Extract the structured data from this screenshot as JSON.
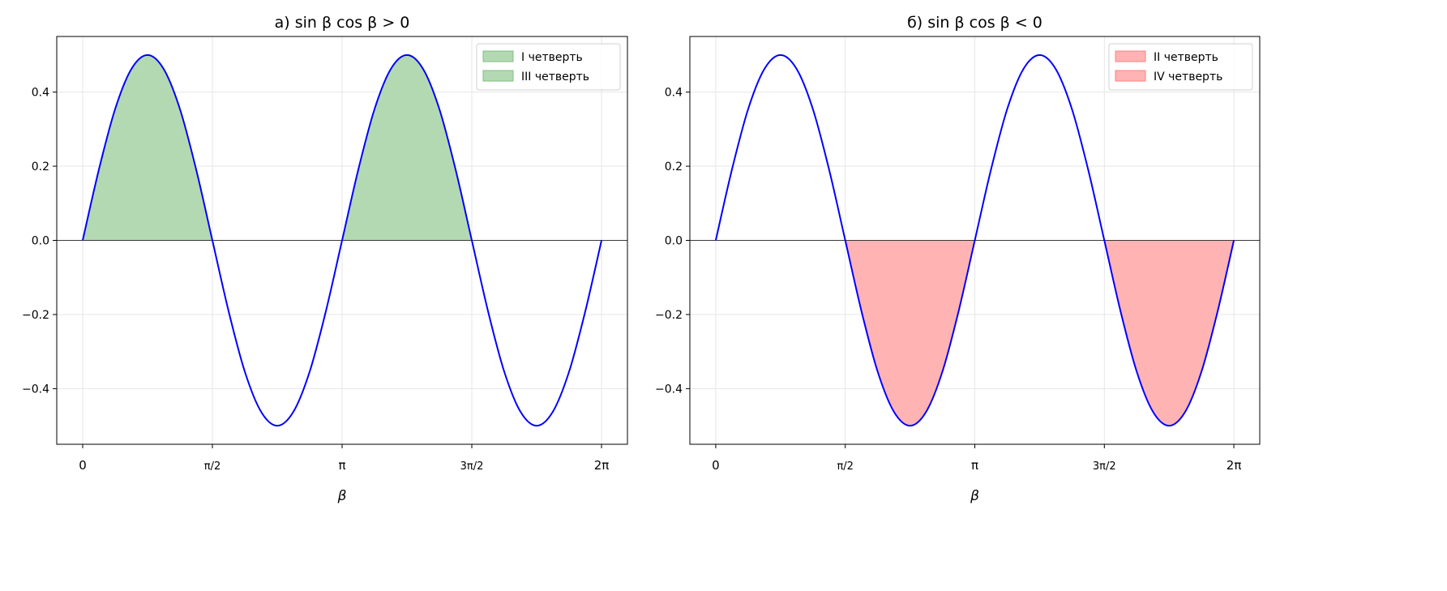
{
  "chart_data": [
    {
      "type": "area",
      "title": "а) sin β cos β > 0",
      "xlabel": "β",
      "ylabel": "",
      "xlim": [
        -0.314,
        6.597
      ],
      "ylim": [
        -0.55,
        0.55
      ],
      "grid": true,
      "xticks": [
        0,
        1.5708,
        3.1416,
        4.7124,
        6.2832
      ],
      "xtick_labels": [
        "0",
        "π/2",
        "π",
        "3π/2",
        "2π"
      ],
      "yticks": [
        -0.4,
        -0.2,
        0.0,
        0.2,
        0.4
      ],
      "ytick_labels": [
        "−0.4",
        "−0.2",
        "0.0",
        "0.2",
        "0.4"
      ],
      "series": [
        {
          "name": "sin β cos β",
          "color": "#0000ff",
          "x_step": "π/16",
          "y": [
            0,
            0.191,
            0.354,
            0.462,
            0.5,
            0.462,
            0.354,
            0.191,
            0,
            -0.191,
            -0.354,
            -0.462,
            -0.5,
            -0.462,
            -0.354,
            -0.191,
            0,
            0.191,
            0.354,
            0.462,
            0.5,
            0.462,
            0.354,
            0.191,
            0,
            -0.191,
            -0.354,
            -0.462,
            -0.5,
            -0.462,
            -0.354,
            -0.191,
            0
          ]
        }
      ],
      "fill_where": "positive",
      "fill_color": "#b3d9b3",
      "fill_edge": "#80c080",
      "legend": {
        "placement": "top-right",
        "entries": [
          "I четверть",
          "III четверть"
        ]
      }
    },
    {
      "type": "area",
      "title": "б) sin β cos β < 0",
      "xlabel": "β",
      "ylabel": "",
      "xlim": [
        -0.314,
        6.597
      ],
      "ylim": [
        -0.55,
        0.55
      ],
      "grid": true,
      "xticks": [
        0,
        1.5708,
        3.1416,
        4.7124,
        6.2832
      ],
      "xtick_labels": [
        "0",
        "π/2",
        "π",
        "3π/2",
        "2π"
      ],
      "yticks": [
        -0.4,
        -0.2,
        0.0,
        0.2,
        0.4
      ],
      "ytick_labels": [
        "−0.4",
        "−0.2",
        "0.0",
        "0.2",
        "0.4"
      ],
      "series": [
        {
          "name": "sin β cos β",
          "color": "#0000ff",
          "x_step": "π/16",
          "y": [
            0,
            0.191,
            0.354,
            0.462,
            0.5,
            0.462,
            0.354,
            0.191,
            0,
            -0.191,
            -0.354,
            -0.462,
            -0.5,
            -0.462,
            -0.354,
            -0.191,
            0,
            0.191,
            0.354,
            0.462,
            0.5,
            0.462,
            0.354,
            0.191,
            0,
            -0.191,
            -0.354,
            -0.462,
            -0.5,
            -0.462,
            -0.354,
            -0.191,
            0
          ]
        }
      ],
      "fill_where": "negative",
      "fill_color": "#ffb3b3",
      "fill_edge": "#ff8080",
      "legend": {
        "placement": "top-right",
        "entries": [
          "II четверть",
          "IV четверть"
        ]
      }
    }
  ]
}
